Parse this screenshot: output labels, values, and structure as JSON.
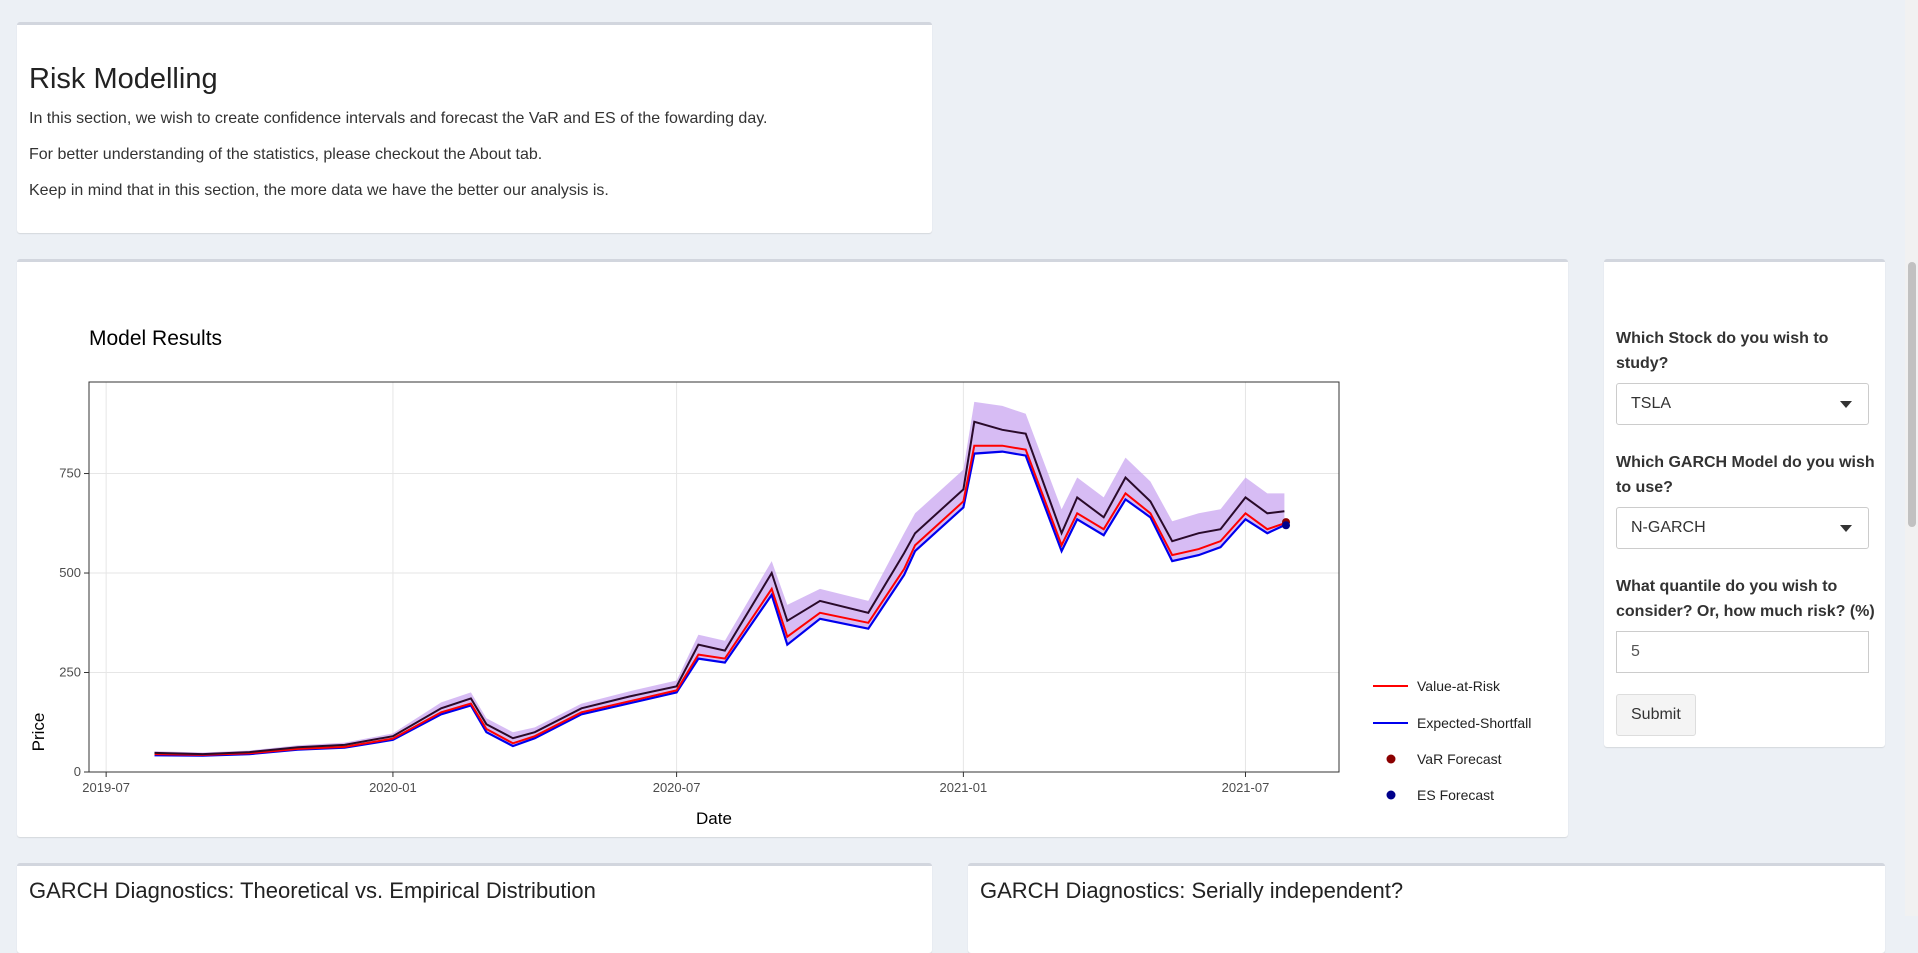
{
  "intro": {
    "title": "Risk Modelling",
    "paragraphs": [
      "In this section, we wish to create confidence intervals and forecast the VaR and ES of the fowarding day.",
      "For better understanding of the statistics, please checkout the About tab.",
      "Keep in mind that in this section, the more data we have the better our analysis is."
    ]
  },
  "controls": {
    "stock_label": "Which Stock do you wish to study?",
    "stock_value": "TSLA",
    "model_label": "Which GARCH Model do you wish to use?",
    "model_value": "N-GARCH",
    "quantile_label": "What quantile do you wish to consider? Or, how much risk? (%)",
    "quantile_value": "5",
    "submit_label": "Submit"
  },
  "bottom": {
    "left_title": "GARCH Diagnostics: Theoretical vs. Empirical Distribution",
    "right_title": "GARCH Diagnostics: Serially independent?"
  },
  "colors": {
    "price": "#2a0a2a",
    "var": "#ff0000",
    "es": "#0000ee",
    "band": "#c9a6f0",
    "var_forecast": "#8b0000",
    "es_forecast": "#00008b"
  },
  "chart_data": {
    "type": "line",
    "title": "Model Results",
    "xlabel": "Date",
    "ylabel": "Price",
    "x_ticks": [
      "2019-07",
      "2020-01",
      "2020-07",
      "2021-01",
      "2021-07"
    ],
    "y_ticks": [
      0,
      250,
      500,
      750
    ],
    "ylim": [
      0,
      980
    ],
    "xlim": [
      "2019-06-20",
      "2021-08-30"
    ],
    "grid": true,
    "legend_position": "right",
    "legend": [
      "Value-at-Risk",
      "Expected-Shortfall",
      "VaR Forecast",
      "ES Forecast"
    ],
    "x": [
      "2019-08-01",
      "2019-09-01",
      "2019-10-01",
      "2019-11-01",
      "2019-12-01",
      "2020-01-01",
      "2020-02-01",
      "2020-02-20",
      "2020-03-01",
      "2020-03-18",
      "2020-04-01",
      "2020-05-01",
      "2020-06-01",
      "2020-07-01",
      "2020-07-15",
      "2020-08-01",
      "2020-08-31",
      "2020-09-10",
      "2020-10-01",
      "2020-11-01",
      "2020-11-24",
      "2020-12-01",
      "2021-01-01",
      "2021-01-08",
      "2021-01-26",
      "2021-02-10",
      "2021-03-05",
      "2021-03-15",
      "2021-04-01",
      "2021-04-15",
      "2021-05-01",
      "2021-05-15",
      "2021-06-01",
      "2021-06-15",
      "2021-07-01",
      "2021-07-15",
      "2021-07-26"
    ],
    "price": [
      48,
      45,
      50,
      62,
      68,
      90,
      160,
      185,
      120,
      85,
      100,
      160,
      190,
      215,
      320,
      305,
      500,
      380,
      430,
      400,
      550,
      600,
      710,
      880,
      860,
      850,
      600,
      690,
      640,
      740,
      680,
      580,
      600,
      610,
      690,
      650,
      655
    ],
    "var": [
      45,
      43,
      47,
      58,
      63,
      84,
      150,
      172,
      108,
      72,
      90,
      150,
      178,
      205,
      295,
      285,
      460,
      340,
      400,
      375,
      510,
      570,
      680,
      820,
      820,
      810,
      570,
      650,
      610,
      700,
      650,
      545,
      560,
      580,
      650,
      610,
      625
    ],
    "es": [
      42,
      41,
      45,
      56,
      61,
      81,
      145,
      167,
      100,
      65,
      85,
      145,
      173,
      200,
      285,
      275,
      445,
      320,
      385,
      360,
      495,
      555,
      665,
      800,
      805,
      795,
      555,
      635,
      595,
      685,
      640,
      530,
      545,
      565,
      635,
      600,
      620
    ],
    "band_upper": [
      52,
      49,
      54,
      67,
      74,
      97,
      175,
      200,
      135,
      100,
      112,
      172,
      203,
      230,
      345,
      330,
      530,
      420,
      460,
      430,
      600,
      650,
      760,
      930,
      920,
      900,
      660,
      740,
      690,
      790,
      730,
      630,
      650,
      660,
      740,
      700,
      700
    ],
    "var_forecast": {
      "x": "2021-07-27",
      "y": 628
    },
    "es_forecast": {
      "x": "2021-07-27",
      "y": 620
    }
  }
}
